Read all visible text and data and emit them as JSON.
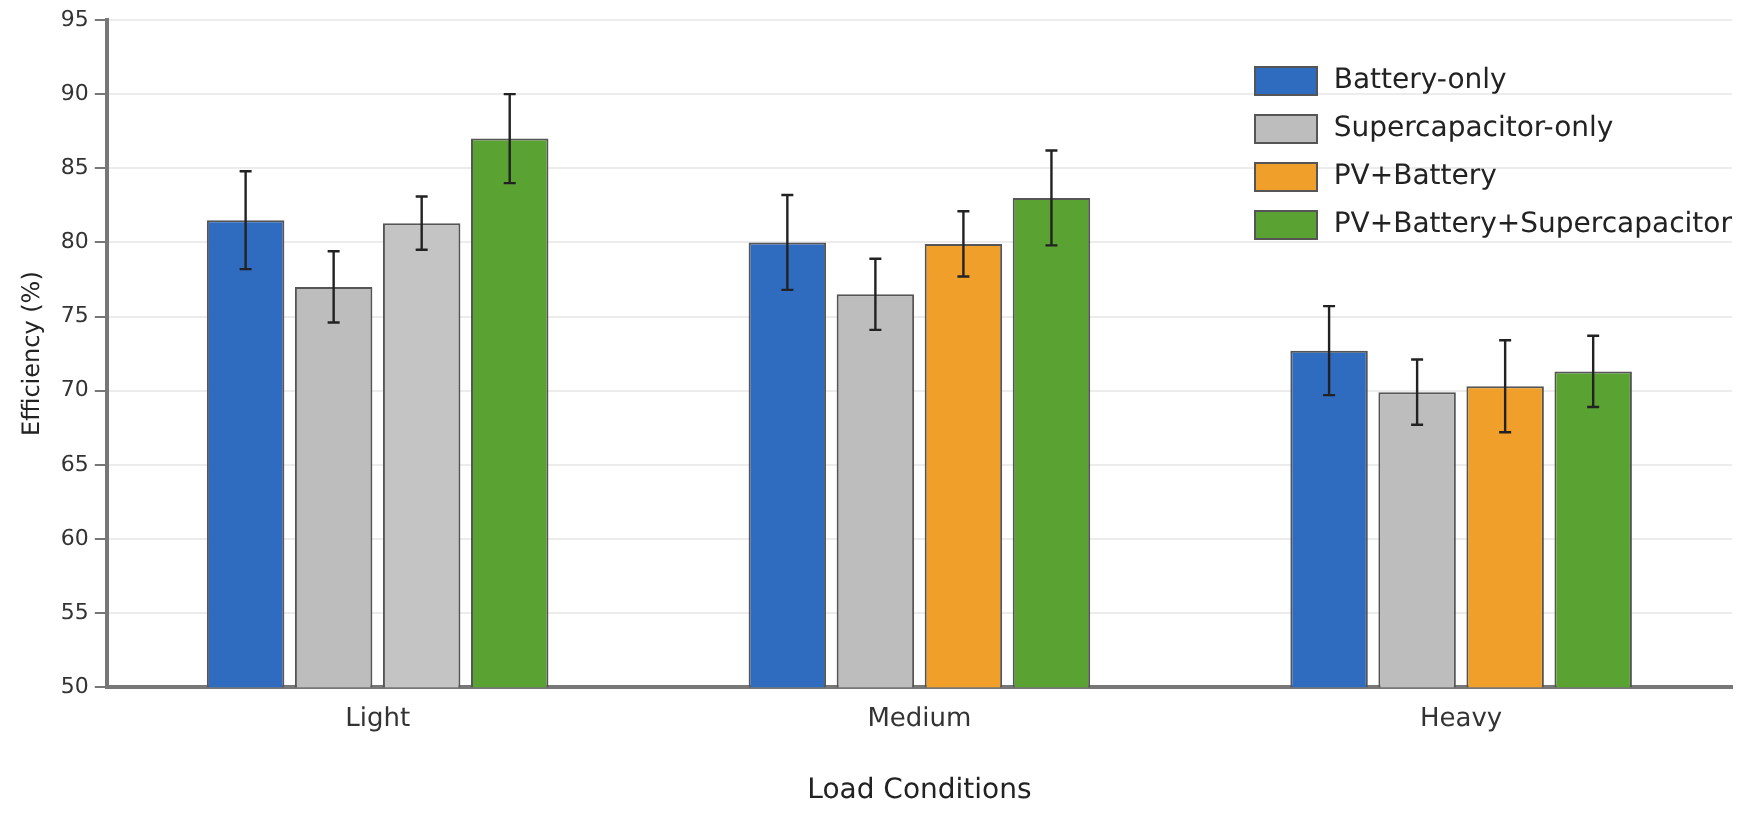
{
  "chart_data": {
    "type": "bar",
    "xlabel": "Load Conditions",
    "ylabel": "Efficiency (%)",
    "categories": [
      "Light",
      "Medium",
      "Heavy"
    ],
    "series": [
      {
        "name": "Battery-only",
        "color": "#2f6bbf",
        "values": [
          81.5,
          80,
          72.7
        ],
        "errors": [
          3.3,
          3.2,
          3
        ]
      },
      {
        "name": "Supercapacitor-only",
        "color": "#bdbdbd",
        "values": [
          77,
          76.5,
          69.9
        ],
        "errors": [
          2.4,
          2.4,
          2.2
        ]
      },
      {
        "name": "PV+Battery",
        "color": "#f0a02a",
        "colors": [
          "#c4c4c4",
          "#f0a02a",
          "#f0a02a"
        ],
        "values": [
          81.3,
          79.9,
          70.3
        ],
        "errors": [
          1.8,
          2.2,
          3.1
        ]
      },
      {
        "name": "PV+Battery+Supercapacitor",
        "color": "#5aa332",
        "values": [
          87,
          83,
          71.3
        ],
        "errors": [
          3,
          3.2,
          2.4
        ]
      }
    ],
    "ylim": [
      50,
      95
    ],
    "yticks": [
      50,
      55,
      60,
      65,
      70,
      75,
      80,
      85,
      90,
      95
    ],
    "grid": "y",
    "legend": "top right"
  }
}
